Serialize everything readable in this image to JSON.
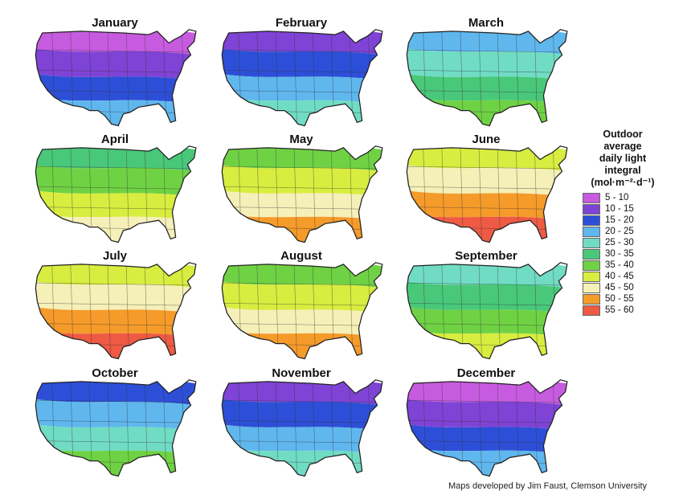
{
  "legend": {
    "title_lines": [
      "Outdoor",
      "average",
      "daily light",
      "integral",
      "(mol·m⁻²·d⁻¹)"
    ],
    "items": [
      {
        "label": "5 - 10",
        "color": "#c75be0"
      },
      {
        "label": "10 - 15",
        "color": "#7f43d6"
      },
      {
        "label": "15 - 20",
        "color": "#2d4fd8"
      },
      {
        "label": "20 - 25",
        "color": "#5fb7ee"
      },
      {
        "label": "25 - 30",
        "color": "#70dcc4"
      },
      {
        "label": "30 - 35",
        "color": "#49c87a"
      },
      {
        "label": "35 - 40",
        "color": "#6fd244"
      },
      {
        "label": "40 - 45",
        "color": "#d8ed3f"
      },
      {
        "label": "45 - 50",
        "color": "#f5f0b8"
      },
      {
        "label": "50 - 55",
        "color": "#f59b2a"
      },
      {
        "label": "55 - 60",
        "color": "#ee5a44"
      }
    ]
  },
  "maps": [
    {
      "month": "January",
      "bands": [
        "#c75be0",
        "#7f43d6",
        "#2d4fd8",
        "#5fb7ee"
      ]
    },
    {
      "month": "February",
      "bands": [
        "#7f43d6",
        "#2d4fd8",
        "#5fb7ee",
        "#70dcc4"
      ]
    },
    {
      "month": "March",
      "bands": [
        "#5fb7ee",
        "#70dcc4",
        "#49c87a",
        "#6fd244"
      ]
    },
    {
      "month": "April",
      "bands": [
        "#49c87a",
        "#6fd244",
        "#d8ed3f",
        "#f5f0b8"
      ]
    },
    {
      "month": "May",
      "bands": [
        "#6fd244",
        "#d8ed3f",
        "#f5f0b8",
        "#f59b2a"
      ]
    },
    {
      "month": "June",
      "bands": [
        "#d8ed3f",
        "#f5f0b8",
        "#f59b2a",
        "#ee5a44"
      ]
    },
    {
      "month": "July",
      "bands": [
        "#d8ed3f",
        "#f5f0b8",
        "#f59b2a",
        "#ee5a44"
      ]
    },
    {
      "month": "August",
      "bands": [
        "#6fd244",
        "#d8ed3f",
        "#f5f0b8",
        "#f59b2a"
      ]
    },
    {
      "month": "September",
      "bands": [
        "#70dcc4",
        "#49c87a",
        "#6fd244",
        "#d8ed3f"
      ]
    },
    {
      "month": "October",
      "bands": [
        "#2d4fd8",
        "#5fb7ee",
        "#70dcc4",
        "#6fd244"
      ]
    },
    {
      "month": "November",
      "bands": [
        "#7f43d6",
        "#2d4fd8",
        "#5fb7ee",
        "#70dcc4"
      ]
    },
    {
      "month": "December",
      "bands": [
        "#c75be0",
        "#7f43d6",
        "#2d4fd8",
        "#5fb7ee"
      ]
    }
  ],
  "credit": "Maps developed by Jim Faust, Clemson University"
}
